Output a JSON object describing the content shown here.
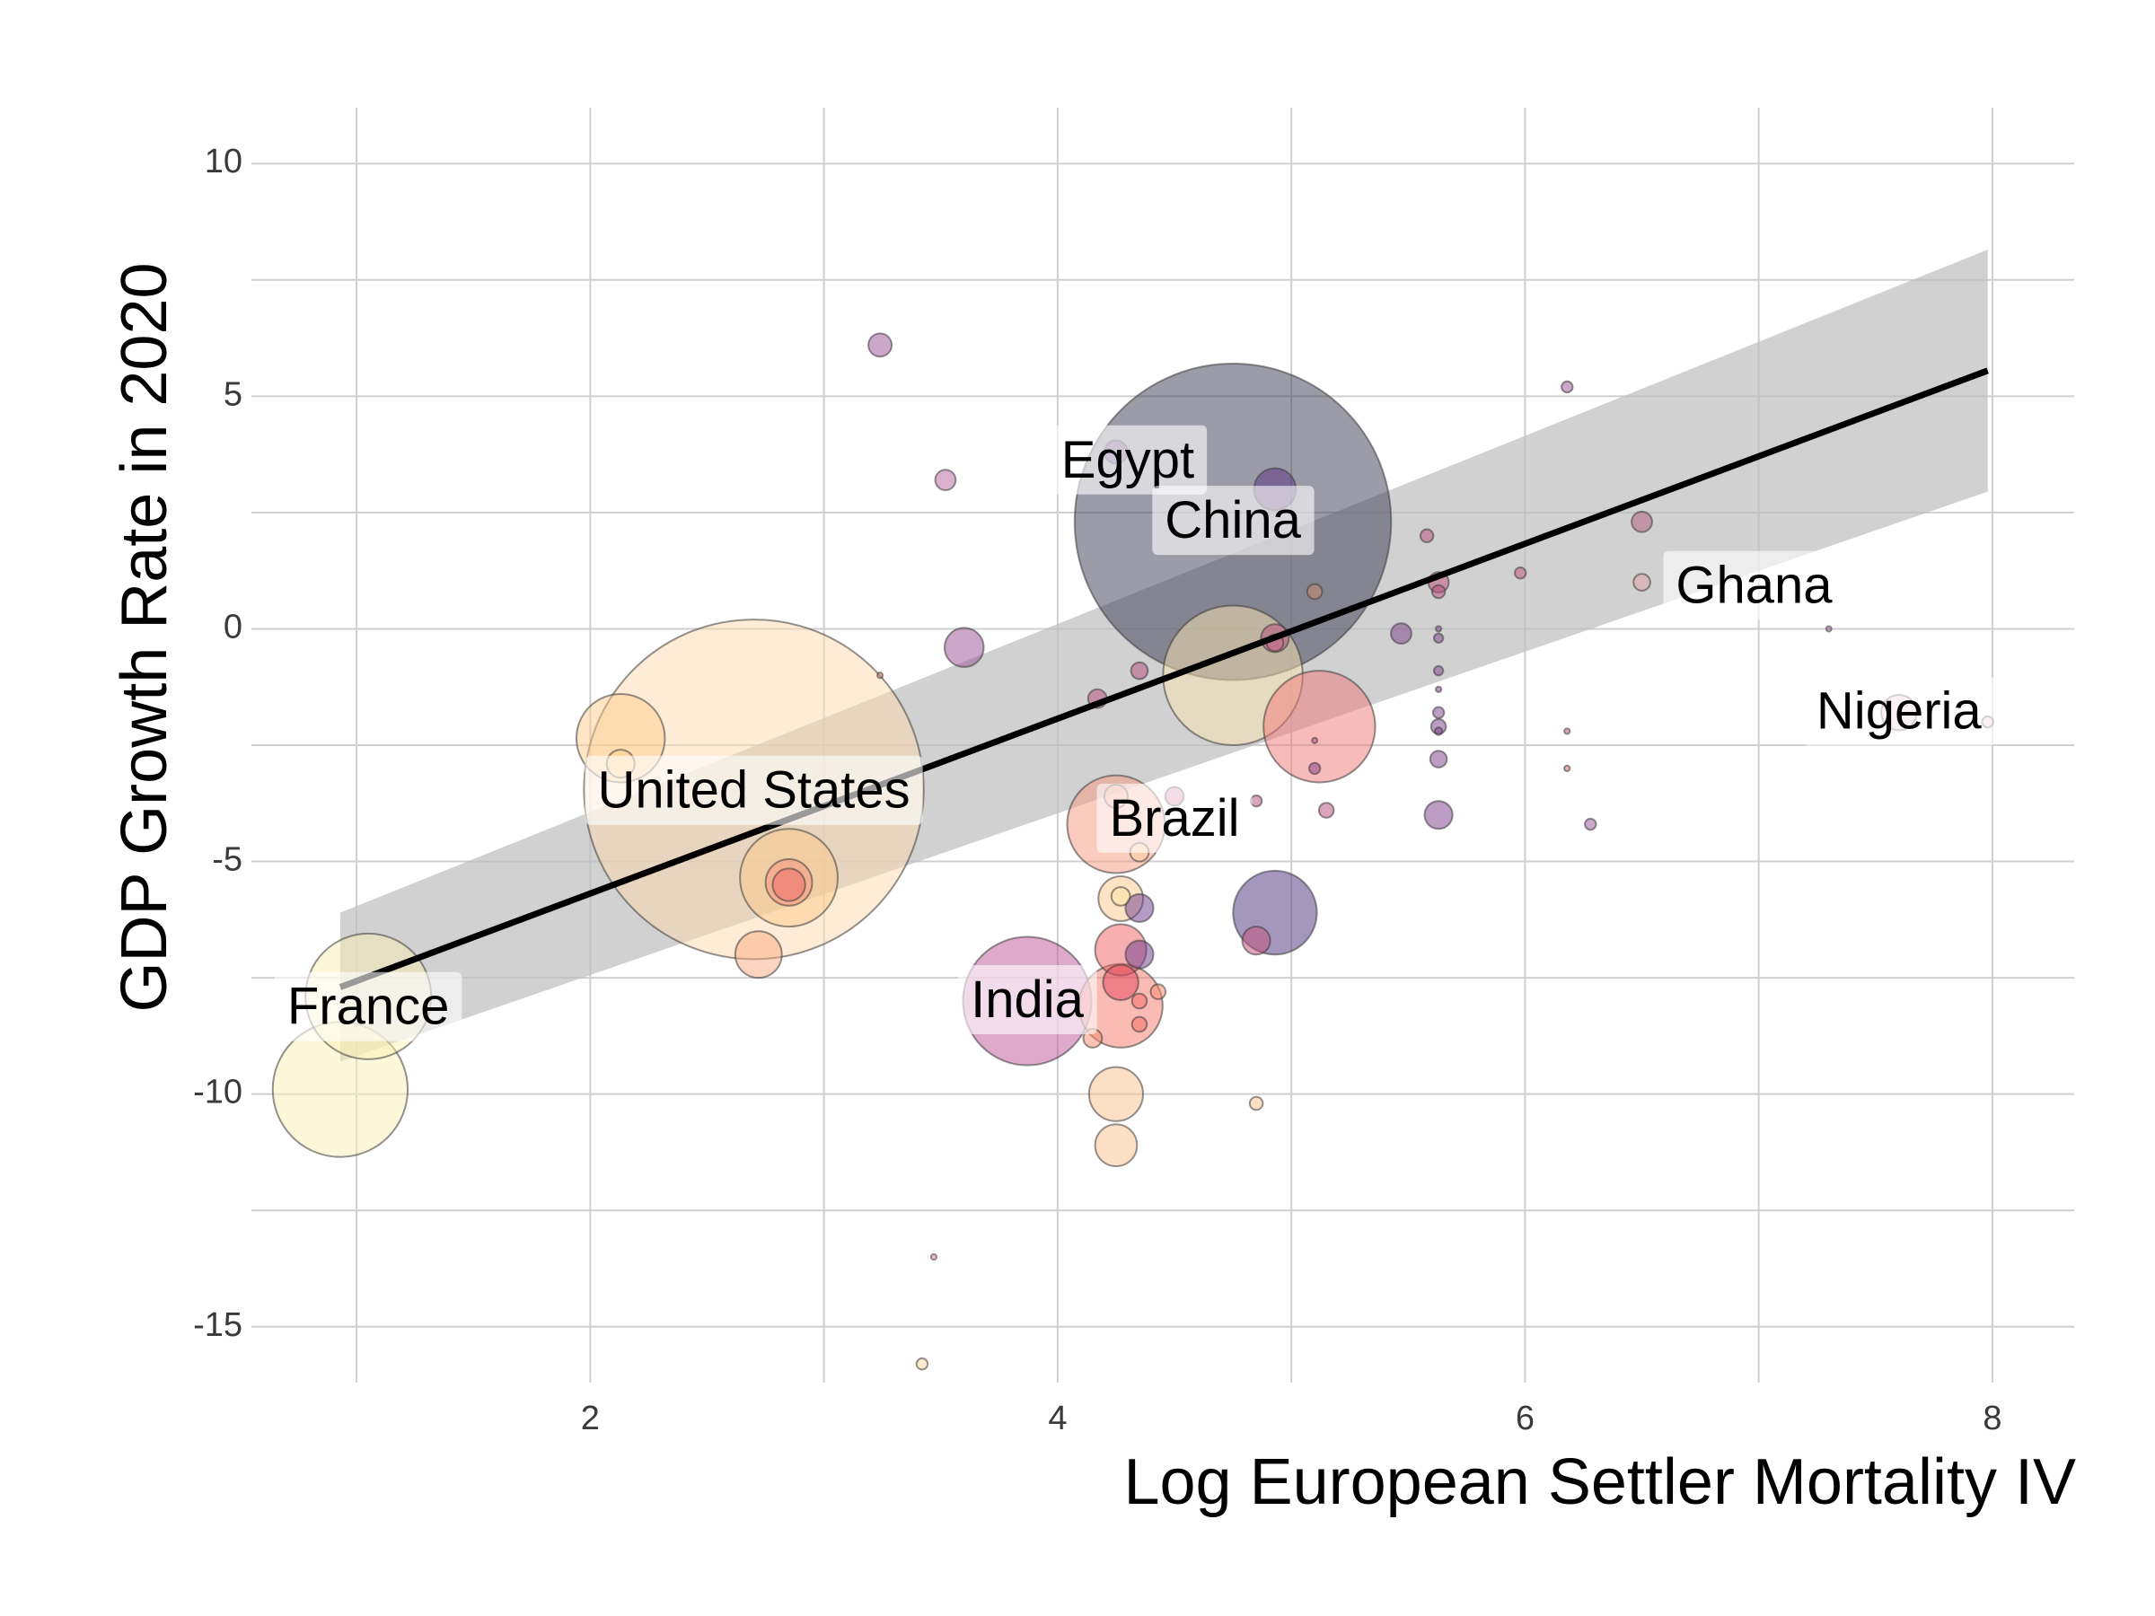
{
  "chart_data": {
    "type": "scatter",
    "xlabel": "Log European Settler Mortality IV",
    "ylabel": "GDP Growth Rate in 2020",
    "xlim": [
      0.55,
      8.35
    ],
    "ylim": [
      -16.2,
      11.2
    ],
    "x_ticks": [
      2,
      4,
      6,
      8
    ],
    "y_ticks": [
      10,
      5,
      0,
      -5,
      -10,
      -15
    ],
    "grid": true,
    "legend": "none",
    "bubble_size_meaning": "relative size (not labeled)",
    "regression": {
      "line": {
        "x": [
          0.93,
          7.98
        ],
        "y": [
          -7.7,
          5.55
        ]
      },
      "ci": {
        "x": [
          0.93,
          7.98
        ],
        "upper": [
          -6.1,
          8.15
        ],
        "lower": [
          -9.3,
          2.95
        ]
      },
      "line_color": "#000000",
      "band_color": "#bdbdbd"
    },
    "points": [
      {
        "x": 0.93,
        "y": -9.9,
        "r": 1.45,
        "color": "#fcefb4",
        "label": ""
      },
      {
        "x": 1.05,
        "y": -7.9,
        "r": 1.35,
        "color": "#fcefb4",
        "label": "France"
      },
      {
        "x": 2.7,
        "y": -3.45,
        "r": 3.65,
        "color": "#fdd9ad",
        "label": "United States"
      },
      {
        "x": 2.13,
        "y": -2.35,
        "r": 0.95,
        "color": "#fbcb8c",
        "label": ""
      },
      {
        "x": 2.13,
        "y": -2.9,
        "r": 0.3,
        "color": "#fbcb8c",
        "label": ""
      },
      {
        "x": 2.85,
        "y": -5.35,
        "r": 1.05,
        "color": "#fbc88a",
        "label": ""
      },
      {
        "x": 2.85,
        "y": -5.45,
        "r": 0.5,
        "color": "#f6907a",
        "label": ""
      },
      {
        "x": 2.85,
        "y": -5.5,
        "r": 0.35,
        "color": "#f06a6a",
        "label": ""
      },
      {
        "x": 2.72,
        "y": -7.0,
        "r": 0.5,
        "color": "#f8a982",
        "label": ""
      },
      {
        "x": 3.24,
        "y": 6.1,
        "r": 0.25,
        "color": "#9c4f96",
        "label": ""
      },
      {
        "x": 3.24,
        "y": -1.0,
        "r": 0.06,
        "color": "#e07a70",
        "label": ""
      },
      {
        "x": 3.52,
        "y": 3.2,
        "r": 0.22,
        "color": "#b8629e",
        "label": ""
      },
      {
        "x": 3.6,
        "y": -0.4,
        "r": 0.42,
        "color": "#9c4f96",
        "label": ""
      },
      {
        "x": 3.47,
        "y": -13.5,
        "r": 0.06,
        "color": "#e08c78",
        "label": ""
      },
      {
        "x": 3.42,
        "y": -15.8,
        "r": 0.12,
        "color": "#fcd79c",
        "label": ""
      },
      {
        "x": 3.87,
        "y": -8.0,
        "r": 1.38,
        "color": "#c0539a",
        "label": "India"
      },
      {
        "x": 4.25,
        "y": -4.2,
        "r": 1.05,
        "color": "#f7977f",
        "label": "Brazil"
      },
      {
        "x": 4.25,
        "y": -3.6,
        "r": 0.25,
        "color": "#f7a88c",
        "label": ""
      },
      {
        "x": 4.27,
        "y": -5.8,
        "r": 0.48,
        "color": "#fdc98a",
        "label": ""
      },
      {
        "x": 4.27,
        "y": -5.75,
        "r": 0.2,
        "color": "#fde3a5",
        "label": ""
      },
      {
        "x": 4.35,
        "y": -6.0,
        "r": 0.3,
        "color": "#6c3a8e",
        "label": ""
      },
      {
        "x": 4.35,
        "y": -7.0,
        "r": 0.3,
        "color": "#6c3a8e",
        "label": ""
      },
      {
        "x": 4.27,
        "y": -6.9,
        "r": 0.55,
        "color": "#f06060",
        "label": ""
      },
      {
        "x": 4.27,
        "y": -7.6,
        "r": 0.38,
        "color": "#e0475a",
        "label": ""
      },
      {
        "x": 4.27,
        "y": -8.1,
        "r": 0.9,
        "color": "#f5786c",
        "label": ""
      },
      {
        "x": 4.35,
        "y": -8.5,
        "r": 0.16,
        "color": "#f26a5e",
        "label": ""
      },
      {
        "x": 4.35,
        "y": -8.0,
        "r": 0.16,
        "color": "#f26a5e",
        "label": ""
      },
      {
        "x": 4.43,
        "y": -7.8,
        "r": 0.16,
        "color": "#f78a6a",
        "label": ""
      },
      {
        "x": 4.15,
        "y": -8.8,
        "r": 0.2,
        "color": "#f78a6a",
        "label": ""
      },
      {
        "x": 4.25,
        "y": -10.0,
        "r": 0.58,
        "color": "#fbc08e",
        "label": ""
      },
      {
        "x": 4.25,
        "y": -11.1,
        "r": 0.45,
        "color": "#fbc08e",
        "label": ""
      },
      {
        "x": 4.35,
        "y": -4.8,
        "r": 0.2,
        "color": "#fdd39a",
        "label": ""
      },
      {
        "x": 4.5,
        "y": -3.6,
        "r": 0.2,
        "color": "#c45a8a",
        "label": ""
      },
      {
        "x": 4.17,
        "y": -1.5,
        "r": 0.2,
        "color": "#b34a7a",
        "label": ""
      },
      {
        "x": 4.35,
        "y": -0.9,
        "r": 0.18,
        "color": "#b34a7a",
        "label": ""
      },
      {
        "x": 4.25,
        "y": 3.8,
        "r": 0.25,
        "color": "#6c3a8e",
        "label": "Egypt"
      },
      {
        "x": 4.75,
        "y": 2.3,
        "r": 3.4,
        "color": "#3a3a52",
        "label": "China"
      },
      {
        "x": 4.93,
        "y": 3.0,
        "r": 0.45,
        "color": "#5a2d82",
        "label": ""
      },
      {
        "x": 4.75,
        "y": -1.0,
        "r": 1.5,
        "color": "#fce5b0",
        "label": ""
      },
      {
        "x": 4.93,
        "y": -0.2,
        "r": 0.3,
        "color": "#b34a7a",
        "label": ""
      },
      {
        "x": 4.93,
        "y": -0.3,
        "r": 0.18,
        "color": "#c46a8a",
        "label": ""
      },
      {
        "x": 5.1,
        "y": 0.8,
        "r": 0.16,
        "color": "#d08a6a",
        "label": ""
      },
      {
        "x": 5.12,
        "y": -2.1,
        "r": 1.2,
        "color": "#f27878",
        "label": ""
      },
      {
        "x": 5.1,
        "y": -2.4,
        "r": 0.03,
        "color": "#b34a7a",
        "label": ""
      },
      {
        "x": 5.1,
        "y": -3.0,
        "r": 0.12,
        "color": "#8a3a8e",
        "label": ""
      },
      {
        "x": 5.15,
        "y": -3.9,
        "r": 0.16,
        "color": "#b34a7a",
        "label": ""
      },
      {
        "x": 4.85,
        "y": -3.7,
        "r": 0.12,
        "color": "#b34a7a",
        "label": ""
      },
      {
        "x": 4.93,
        "y": -6.1,
        "r": 0.9,
        "color": "#4a2d7a",
        "label": ""
      },
      {
        "x": 4.85,
        "y": -6.7,
        "r": 0.3,
        "color": "#c4507a",
        "label": ""
      },
      {
        "x": 4.85,
        "y": -10.2,
        "r": 0.14,
        "color": "#fbc08e",
        "label": ""
      },
      {
        "x": 5.47,
        "y": -0.1,
        "r": 0.22,
        "color": "#7a3e8a",
        "label": ""
      },
      {
        "x": 5.58,
        "y": 2.0,
        "r": 0.14,
        "color": "#b34a7a",
        "label": ""
      },
      {
        "x": 5.63,
        "y": 1.0,
        "r": 0.22,
        "color": "#c0507a",
        "label": ""
      },
      {
        "x": 5.63,
        "y": 0.8,
        "r": 0.14,
        "color": "#b34a7a",
        "label": ""
      },
      {
        "x": 5.63,
        "y": 0.0,
        "r": 0.06,
        "color": "#7a3e8a",
        "label": ""
      },
      {
        "x": 5.63,
        "y": -0.2,
        "r": 0.1,
        "color": "#7a3e8a",
        "label": ""
      },
      {
        "x": 5.63,
        "y": -0.9,
        "r": 0.1,
        "color": "#7a3e8a",
        "label": ""
      },
      {
        "x": 5.63,
        "y": -1.3,
        "r": 0.06,
        "color": "#7a3e8a",
        "label": ""
      },
      {
        "x": 5.63,
        "y": -1.8,
        "r": 0.12,
        "color": "#7a3e8a",
        "label": ""
      },
      {
        "x": 5.63,
        "y": -2.1,
        "r": 0.16,
        "color": "#7a3e8a",
        "label": ""
      },
      {
        "x": 5.63,
        "y": -2.2,
        "r": 0.08,
        "color": "#7a3e8a",
        "label": ""
      },
      {
        "x": 5.63,
        "y": -2.8,
        "r": 0.18,
        "color": "#7a3e8a",
        "label": ""
      },
      {
        "x": 5.63,
        "y": -4.0,
        "r": 0.3,
        "color": "#7a3e8a",
        "label": ""
      },
      {
        "x": 5.98,
        "y": 1.2,
        "r": 0.12,
        "color": "#c0507a",
        "label": ""
      },
      {
        "x": 6.18,
        "y": 5.2,
        "r": 0.12,
        "color": "#9c4f96",
        "label": ""
      },
      {
        "x": 6.18,
        "y": -2.2,
        "r": 0.06,
        "color": "#c0507a",
        "label": ""
      },
      {
        "x": 6.18,
        "y": -3.0,
        "r": 0.06,
        "color": "#e06060",
        "label": ""
      },
      {
        "x": 6.28,
        "y": -4.2,
        "r": 0.12,
        "color": "#9c4f96",
        "label": ""
      },
      {
        "x": 6.5,
        "y": 2.3,
        "r": 0.22,
        "color": "#b05a7a",
        "label": ""
      },
      {
        "x": 6.5,
        "y": 1.0,
        "r": 0.18,
        "color": "#e0a0a0",
        "label": "Ghana"
      },
      {
        "x": 7.3,
        "y": 0.0,
        "r": 0.03,
        "color": "#9c4f96",
        "label": ""
      },
      {
        "x": 7.6,
        "y": -1.8,
        "r": 0.38,
        "color": "#f0b8c8",
        "label": "Nigeria"
      },
      {
        "x": 7.98,
        "y": -2.0,
        "r": 0.12,
        "color": "#f0b8c8",
        "label": ""
      }
    ],
    "labels": [
      {
        "text": "France",
        "x": 1.05,
        "y": -8.2
      },
      {
        "text": "United States",
        "x": 2.7,
        "y": -3.55
      },
      {
        "text": "Egypt",
        "x": 4.3,
        "y": 3.55
      },
      {
        "text": "China",
        "x": 4.75,
        "y": 2.25
      },
      {
        "text": "Brazil",
        "x": 4.5,
        "y": -4.15
      },
      {
        "text": "India",
        "x": 3.87,
        "y": -8.05
      },
      {
        "text": "Ghana",
        "x": 6.98,
        "y": 0.85
      },
      {
        "text": "Nigeria",
        "x": 7.6,
        "y": -1.85
      }
    ]
  }
}
